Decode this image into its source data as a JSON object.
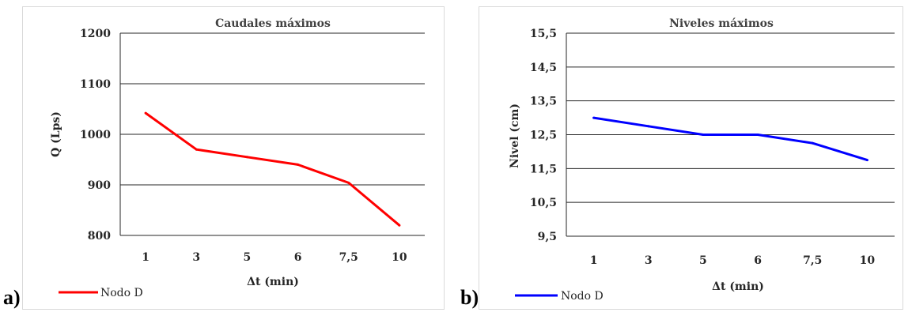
{
  "chart_data": [
    {
      "type": "line",
      "title": "Caudales máximos",
      "xlabel": "Δt (min)",
      "ylabel": "Q (Lps)",
      "categories": [
        "1",
        "3",
        "5",
        "6",
        "7,5",
        "10"
      ],
      "series": [
        {
          "name": "Nodo D",
          "color": "#ff0000",
          "values": [
            1042,
            970,
            955,
            940,
            904,
            820
          ]
        }
      ],
      "yticks": [
        "800",
        "900",
        "1000",
        "1100",
        "1200"
      ],
      "ytick_values": [
        800,
        900,
        1000,
        1100,
        1200
      ],
      "ylim": [
        800,
        1200
      ],
      "grid": true,
      "legend": "bottom-left"
    },
    {
      "type": "line",
      "title": "Niveles máximos",
      "xlabel": "Δt (min)",
      "ylabel": "Nivel (cm)",
      "categories": [
        "1",
        "3",
        "5",
        "6",
        "7,5",
        "10"
      ],
      "series": [
        {
          "name": "Nodo D",
          "color": "#0000ff",
          "values": [
            13.0,
            12.75,
            12.5,
            12.5,
            12.25,
            11.75
          ]
        }
      ],
      "yticks": [
        "9,5",
        "10,5",
        "11,5",
        "12,5",
        "13,5",
        "14,5",
        "15,5"
      ],
      "ytick_values": [
        9.5,
        10.5,
        11.5,
        12.5,
        13.5,
        14.5,
        15.5
      ],
      "ylim": [
        9.5,
        15.5
      ],
      "grid": true,
      "legend": "bottom-left"
    }
  ],
  "panel_labels": [
    "a)",
    "b)"
  ]
}
